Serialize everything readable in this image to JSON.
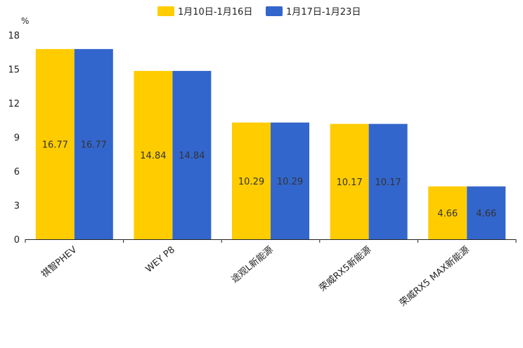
{
  "chart_data": {
    "type": "bar",
    "title": "",
    "xlabel": "",
    "ylabel": "%",
    "ylim": [
      0,
      18
    ],
    "yticks": [
      0,
      3,
      6,
      9,
      12,
      15,
      18
    ],
    "categories": [
      "祺智PHEV",
      "WEY P8",
      "途观L新能源",
      "荣威RX5新能源",
      "荣威RX5 MAX新能源"
    ],
    "series": [
      {
        "name": "1月10日-1月16日",
        "color": "#FFCC00",
        "values": [
          16.77,
          14.84,
          10.29,
          10.17,
          4.66
        ]
      },
      {
        "name": "1月17日-1月23日",
        "color": "#3366CC",
        "values": [
          16.77,
          14.84,
          10.29,
          10.17,
          4.66
        ]
      }
    ],
    "legend": "top-center",
    "grid": false
  }
}
